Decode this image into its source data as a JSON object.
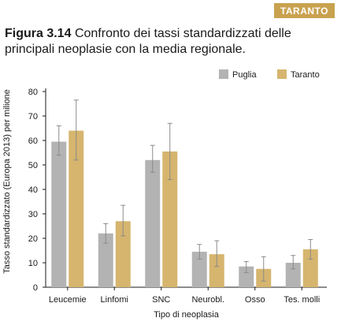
{
  "badge": "TARANTO",
  "title": {
    "figure_label": "Figura 3.14",
    "text": "Confronto dei tassi standardizzati delle principali neoplasie con la media regionale."
  },
  "colors": {
    "puglia": "#b3b3b3",
    "taranto": "#d6b56e",
    "axis": "#1a1a1a",
    "errbar": "#8a8a8a"
  },
  "chart_data": {
    "type": "bar",
    "categories": [
      "Leucemie",
      "Linfomi",
      "SNC",
      "Neurobl.",
      "Osso",
      "Tes. molli"
    ],
    "series": [
      {
        "name": "Puglia",
        "values": [
          59.5,
          22,
          52,
          14.5,
          8.5,
          10
        ],
        "err_low": [
          54,
          18,
          47,
          11.5,
          6,
          7.5
        ],
        "err_high": [
          66,
          26,
          58,
          17.5,
          10.5,
          13
        ]
      },
      {
        "name": "Taranto",
        "values": [
          64,
          27,
          55.5,
          13.5,
          7.5,
          15.5
        ],
        "err_low": [
          52,
          21,
          44,
          8.5,
          2.5,
          11.5
        ],
        "err_high": [
          76.5,
          33.5,
          67,
          19,
          12.5,
          19.5
        ]
      }
    ],
    "xlabel": "Tipo di neoplasia",
    "ylabel": "Tasso standardizzato (Europa 2013) per milione",
    "ylim": [
      0,
      80
    ],
    "yticks": [
      0,
      10,
      20,
      30,
      40,
      50,
      60,
      70,
      80
    ],
    "grid": false,
    "legend_position": "top-right"
  }
}
